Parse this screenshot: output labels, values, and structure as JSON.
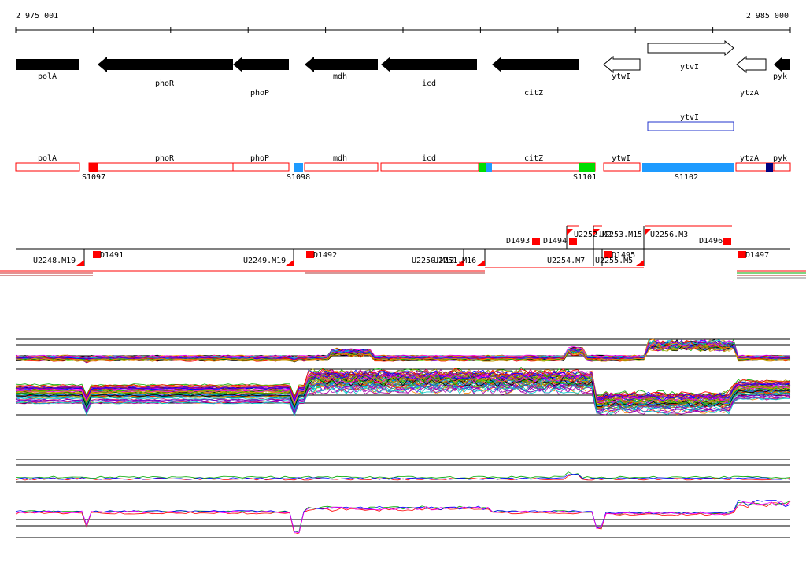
{
  "coords": {
    "start": "2 975 001",
    "end": "2 985 000"
  },
  "genes": [
    {
      "name": "polA",
      "strand": "-",
      "filled": true
    },
    {
      "name": "phoR",
      "strand": "-",
      "filled": true
    },
    {
      "name": "phoP",
      "strand": "-",
      "filled": true
    },
    {
      "name": "mdh",
      "strand": "-",
      "filled": true
    },
    {
      "name": "icd",
      "strand": "-",
      "filled": true
    },
    {
      "name": "citZ",
      "strand": "-",
      "filled": true
    },
    {
      "name": "ytwI",
      "strand": "-",
      "filled": false
    },
    {
      "name": "ytvI",
      "strand": "+",
      "filled": false
    },
    {
      "name": "ytzA",
      "strand": "-",
      "filled": false
    },
    {
      "name": "pyk",
      "strand": "-",
      "filled": true
    }
  ],
  "blue_box_label": "ytvI",
  "segment_genes": [
    "polA",
    "phoR",
    "phoP",
    "mdh",
    "icd",
    "citZ",
    "ytwI",
    "ytzA",
    "pyk"
  ],
  "segments": [
    "S1097",
    "S1098",
    "S1101",
    "S1102"
  ],
  "colors": {
    "red": "#ff0000",
    "green": "#00dd00",
    "blue": "#1e9bff",
    "navy": "#000080",
    "outline_blue": "#2233cc"
  },
  "features_upper": [
    "D1493",
    "D1494",
    "U2252.M2",
    "U2253.M15",
    "U2256.M3",
    "D1496"
  ],
  "features_lower": [
    "U2248.M19",
    "D1491",
    "U2249.M19",
    "D1492",
    "U2250.M13",
    "U2251.M16",
    "U2254.M7",
    "D1495",
    "U2255.M5",
    "D1497"
  ]
}
